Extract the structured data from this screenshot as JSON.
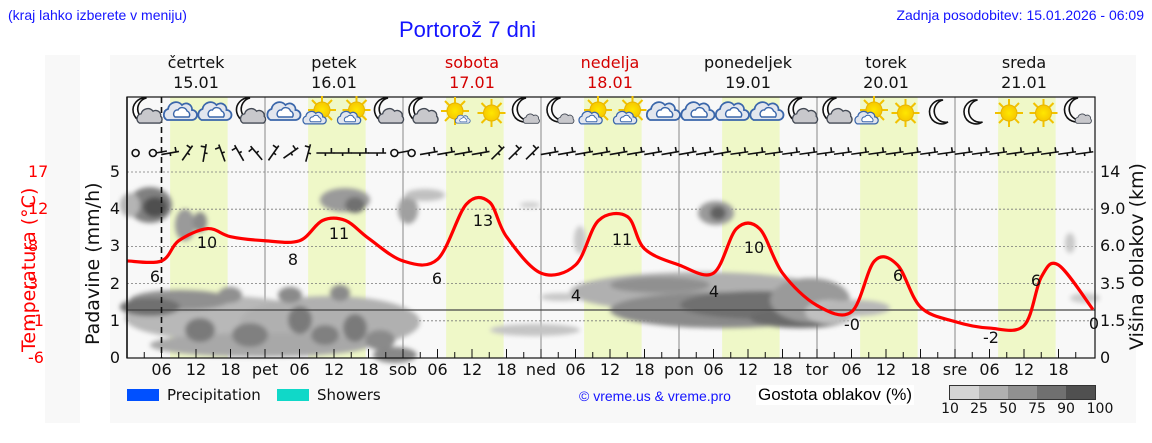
{
  "header": {
    "menu_hint": "(kraj lahko izberete v meniju)",
    "title": "Portorož 7 dni",
    "last_update": "Zadnja posodobitev: 15.01.2026 - 06:09"
  },
  "days": [
    {
      "name": "četrtek",
      "date": "15.01",
      "weekend": false
    },
    {
      "name": "petek",
      "date": "16.01",
      "weekend": false
    },
    {
      "name": "sobota",
      "date": "17.01",
      "weekend": true
    },
    {
      "name": "nedelja",
      "date": "18.01",
      "weekend": true
    },
    {
      "name": "ponedeljek",
      "date": "19.01",
      "weekend": false
    },
    {
      "name": "torek",
      "date": "20.01",
      "weekend": false
    },
    {
      "name": "sreda",
      "date": "21.01",
      "weekend": false
    }
  ],
  "x_ticks": [
    "06",
    "12",
    "18",
    "pet",
    "06",
    "12",
    "18",
    "sob",
    "06",
    "12",
    "18",
    "ned",
    "06",
    "12",
    "18",
    "pon",
    "06",
    "12",
    "18",
    "tor",
    "06",
    "12",
    "18",
    "sre",
    "06",
    "12",
    "18"
  ],
  "axes": {
    "left_title": "Padavine (mm/h)",
    "temp_title": "Temperatura (°C)",
    "right_title": "Višina oblakov (km)",
    "left_ticks": [
      "0",
      "1",
      "2",
      "3",
      "4",
      "5"
    ],
    "temp_ticks": [
      "-6",
      "-1",
      "3",
      "8",
      "12",
      "17"
    ],
    "right_ticks": [
      "0",
      "1.5",
      "3.5",
      "6.0",
      "9.0",
      "14"
    ]
  },
  "legend": {
    "precipitation": "Precipitation",
    "showers": "Showers",
    "precipitation_color": "#0050ff",
    "showers_color": "#10d8c8",
    "copyright": "© vreme.us & vreme.pro",
    "cloud_density_title": "Gostota oblakov (%)",
    "cloud_density_scale": [
      "10",
      "25",
      "50",
      "75",
      "90",
      "100"
    ],
    "cloud_density_colors": [
      "#d4d4d4",
      "#b0b0b0",
      "#909090",
      "#707070",
      "#505050"
    ]
  },
  "weather_icons": [
    "moon-cloud",
    "cloud",
    "cloud",
    "moon-cloud",
    "cloud",
    "sun-cloud",
    "sun-cloud",
    "moon-cloud",
    "moon-cloud",
    "sun-small-cloud",
    "sun",
    "moon-small-cloud",
    "moon-small-cloud",
    "sun-cloud",
    "sun-cloud",
    "cloud",
    "cloud",
    "cloud",
    "cloud",
    "moon-cloud",
    "moon-cloud",
    "sun-cloud",
    "sun",
    "moon",
    "moon",
    "sun",
    "sun",
    "moon-small-cloud"
  ],
  "chart_data": {
    "type": "line",
    "title": "Portorož 7 dni",
    "xlabel": "",
    "ylabel": "Padavine (mm/h)",
    "y2label": "Temperatura (°C)",
    "y3label": "Višina oblakov (km)",
    "ylim": [
      0,
      5
    ],
    "temp_range": [
      -6,
      17
    ],
    "grid": true,
    "current_time_marker": "15.01 06:00",
    "series": [
      {
        "name": "Temperatura (°C)",
        "color": "#ff0000",
        "x_hours": [
          0,
          6,
          9,
          14,
          18,
          24,
          30,
          34,
          38,
          42,
          48,
          54,
          59,
          63,
          66,
          72,
          78,
          82,
          87,
          90,
          96,
          102,
          106,
          110,
          114,
          120,
          126,
          130,
          134,
          138,
          144,
          150,
          156,
          159,
          162,
          168
        ],
        "values": [
          6,
          6,
          8.5,
          10,
          9,
          8.5,
          8.5,
          11,
          11,
          8.8,
          6,
          6.2,
          13,
          13.3,
          9,
          4.5,
          5.5,
          11,
          11.5,
          7.5,
          5.5,
          4.5,
          10,
          10,
          4.5,
          0.5,
          -0.3,
          6,
          5.5,
          0.3,
          -1.5,
          -2.3,
          -2,
          4,
          5.5,
          0
        ]
      }
    ],
    "temp_labels": [
      {
        "day": "15.01",
        "hour": "00",
        "value": "6"
      },
      {
        "day": "15.01",
        "hour": "14",
        "value": "10"
      },
      {
        "day": "16.01",
        "hour": "00",
        "value": "8"
      },
      {
        "day": "16.01",
        "hour": "14",
        "value": "11"
      },
      {
        "day": "17.01",
        "hour": "00",
        "value": "6"
      },
      {
        "day": "17.01",
        "hour": "14",
        "value": "13"
      },
      {
        "day": "18.01",
        "hour": "06",
        "value": "4"
      },
      {
        "day": "18.01",
        "hour": "14",
        "value": "11"
      },
      {
        "day": "19.01",
        "hour": "06",
        "value": "4"
      },
      {
        "day": "19.01",
        "hour": "14",
        "value": "10"
      },
      {
        "day": "20.01",
        "hour": "06",
        "value": "-0"
      },
      {
        "day": "20.01",
        "hour": "14",
        "value": "6"
      },
      {
        "day": "21.01",
        "hour": "06",
        "value": "-2"
      },
      {
        "day": "21.01",
        "hour": "14",
        "value": "6"
      },
      {
        "day": "22.01",
        "hour": "00",
        "value": "0"
      }
    ],
    "precipitation": [],
    "showers": []
  }
}
